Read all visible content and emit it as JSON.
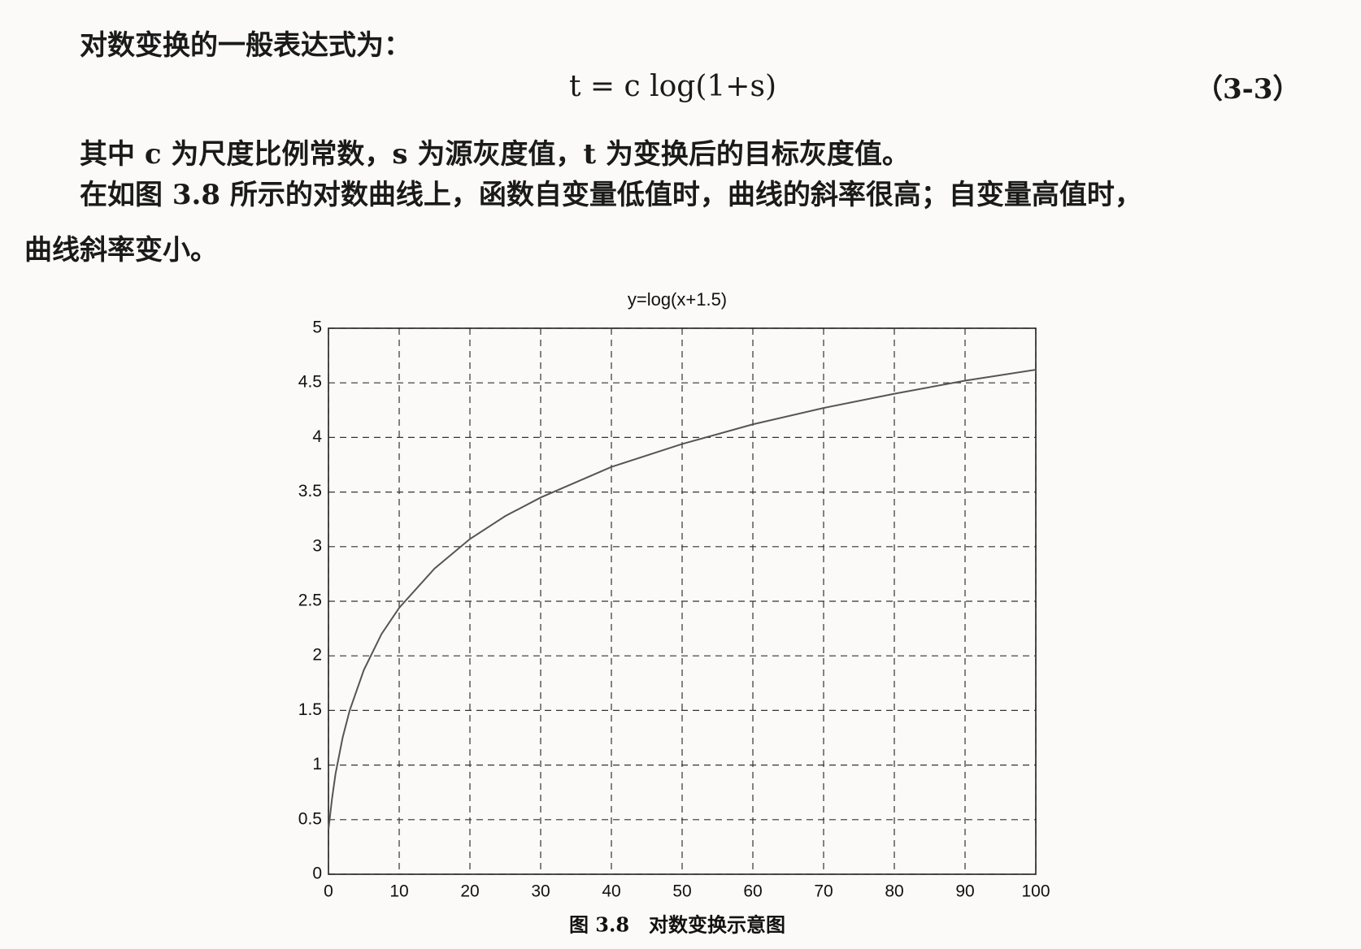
{
  "paragraphs": [
    {
      "lines": [
        "对数变换的一般表达式为："
      ]
    },
    {
      "lines": [
        "其中 c 为尺度比例常数，s 为源灰度值，t 为变换后的目标灰度值。"
      ]
    },
    {
      "lines": [
        "在如图 3.8 所示的对数曲线上，函数自变量低值时，曲线的斜率很高；自变量高值时，",
        "曲线斜率变小。"
      ]
    }
  ],
  "equation": {
    "text": "t = c log(1+s)",
    "number": "（3-3）"
  },
  "chart_data": {
    "type": "line",
    "title": "y=log(x+1.5)",
    "x": [
      0,
      0.5,
      1,
      2,
      3,
      5,
      7.5,
      10,
      15,
      20,
      25,
      30,
      40,
      50,
      60,
      70,
      80,
      90,
      100
    ],
    "values": [
      0.41,
      0.69,
      0.92,
      1.25,
      1.5,
      1.87,
      2.2,
      2.44,
      2.8,
      3.07,
      3.28,
      3.45,
      3.73,
      3.94,
      4.12,
      4.27,
      4.4,
      4.52,
      4.62
    ],
    "color": "#555555",
    "xlim": [
      0,
      100
    ],
    "xticks": [
      0,
      10,
      20,
      30,
      40,
      50,
      60,
      70,
      80,
      90,
      100
    ],
    "ylim": [
      0,
      5
    ],
    "yticks": [
      0,
      0.5,
      1,
      1.5,
      2,
      2.5,
      3,
      3.5,
      4,
      4.5,
      5
    ],
    "grid": true
  },
  "caption": "图 3.8　对数变换示意图"
}
